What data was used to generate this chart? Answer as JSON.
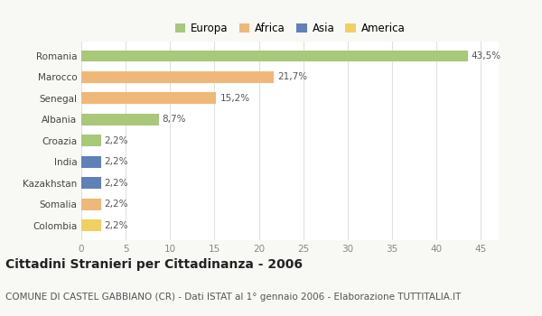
{
  "countries": [
    "Romania",
    "Marocco",
    "Senegal",
    "Albania",
    "Croazia",
    "India",
    "Kazakhstan",
    "Somalia",
    "Colombia"
  ],
  "values": [
    43.5,
    21.7,
    15.2,
    8.7,
    2.2,
    2.2,
    2.2,
    2.2,
    2.2
  ],
  "labels": [
    "43,5%",
    "21,7%",
    "15,2%",
    "8,7%",
    "2,2%",
    "2,2%",
    "2,2%",
    "2,2%",
    "2,2%"
  ],
  "continents": [
    "Europa",
    "Africa",
    "Africa",
    "Europa",
    "Europa",
    "Asia",
    "Asia",
    "Africa",
    "America"
  ],
  "colors": {
    "Europa": "#a8c87a",
    "Africa": "#f0b878",
    "Asia": "#6080b8",
    "America": "#f0d060"
  },
  "title": "Cittadini Stranieri per Cittadinanza - 2006",
  "subtitle": "COMUNE DI CASTEL GABBIANO (CR) - Dati ISTAT al 1° gennaio 2006 - Elaborazione TUTTITALIA.IT",
  "xlim": [
    0,
    47
  ],
  "xticks": [
    0,
    5,
    10,
    15,
    20,
    25,
    30,
    35,
    40,
    45
  ],
  "background_color": "#f8f8f5",
  "plot_bg_color": "#ffffff",
  "grid_color": "#e0e0e0",
  "title_fontsize": 10,
  "subtitle_fontsize": 7.5,
  "label_fontsize": 7.5,
  "tick_fontsize": 7.5,
  "legend_fontsize": 8.5,
  "bar_height": 0.55
}
